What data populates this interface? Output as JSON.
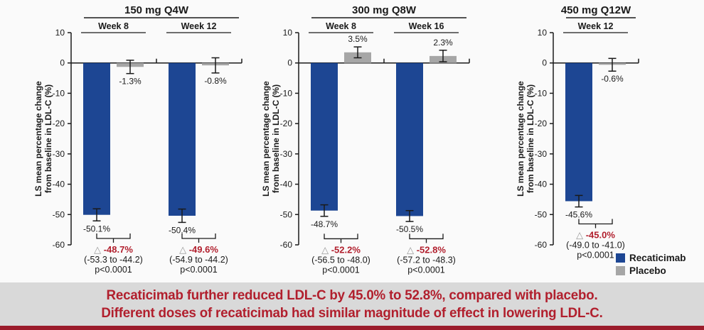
{
  "page": {
    "background": "#fafafa"
  },
  "banner": {
    "line1": "Recaticimab further reduced LDL-C by 45.0% to 52.8%, compared with placebo.",
    "line2": "Different doses of recaticimab had similar magnitude of effect in lowering LDL-C.",
    "text_color": "#b11f2d",
    "background": "#d9d9d9",
    "bottom_strip_color": "#9b1c2b"
  },
  "legend": {
    "items": [
      {
        "label": "Recaticimab",
        "color": "#1d4693"
      },
      {
        "label": "Placebo",
        "color": "#a6a6a6"
      }
    ]
  },
  "chart_data": {
    "type": "bar",
    "ylabel_line1": "LS mean percentage change",
    "ylabel_line2": "from baseline in LDL-C (%)",
    "ylim": [
      -60,
      10
    ],
    "yticks": [
      10,
      0,
      -10,
      -20,
      -30,
      -40,
      -50,
      -60
    ],
    "grid": "off",
    "legend_position": "bottom-right",
    "series_names": [
      "Recaticimab",
      "Placebo"
    ],
    "colors": {
      "recaticimab": "#1d4693",
      "placebo": "#a6a6a6",
      "delta_red": "#b11f2d",
      "triangle_gray": "#9a9a9a",
      "axis": "#1a1a1a"
    },
    "panels": [
      {
        "title": "150 mg Q4W",
        "groups": [
          {
            "week": "Week 8",
            "recaticimab": {
              "value": -50.1,
              "label": "-50.1%",
              "err": 2.0
            },
            "placebo": {
              "value": -1.3,
              "label": "-1.3%",
              "err": 2.2
            },
            "difference": {
              "delta": "-48.7%",
              "ci": "(-53.3 to -44.2)",
              "p": "p<0.0001"
            }
          },
          {
            "week": "Week 12",
            "recaticimab": {
              "value": -50.4,
              "label": "-50.4%",
              "err": 2.2
            },
            "placebo": {
              "value": -0.8,
              "label": "-0.8%",
              "err": 2.5
            },
            "difference": {
              "delta": "-49.6%",
              "ci": "(-54.9 to -44.2)",
              "p": "p<0.0001"
            }
          }
        ]
      },
      {
        "title": "300 mg Q8W",
        "groups": [
          {
            "week": "Week 8",
            "recaticimab": {
              "value": -48.7,
              "label": "-48.7%",
              "err": 1.9
            },
            "placebo": {
              "value": 3.5,
              "label": "3.5%",
              "err": 1.8
            },
            "difference": {
              "delta": "-52.2%",
              "ci": "(-56.5 to -48.0)",
              "p": "p<0.0001"
            }
          },
          {
            "week": "Week 16",
            "recaticimab": {
              "value": -50.5,
              "label": "-50.5%",
              "err": 1.8
            },
            "placebo": {
              "value": 2.3,
              "label": "2.3%",
              "err": 1.9
            },
            "difference": {
              "delta": "-52.8%",
              "ci": "(-57.2 to -48.3)",
              "p": "p<0.0001"
            }
          }
        ]
      },
      {
        "title": "450 mg Q12W",
        "groups": [
          {
            "week": "Week 12",
            "recaticimab": {
              "value": -45.6,
              "label": "-45.6%",
              "err": 1.9
            },
            "placebo": {
              "value": -0.6,
              "label": "-0.6%",
              "err": 2.1
            },
            "difference": {
              "delta": "-45.0%",
              "ci": "(-49.0 to -41.0)",
              "p": "p<0.0001"
            }
          }
        ]
      }
    ]
  }
}
